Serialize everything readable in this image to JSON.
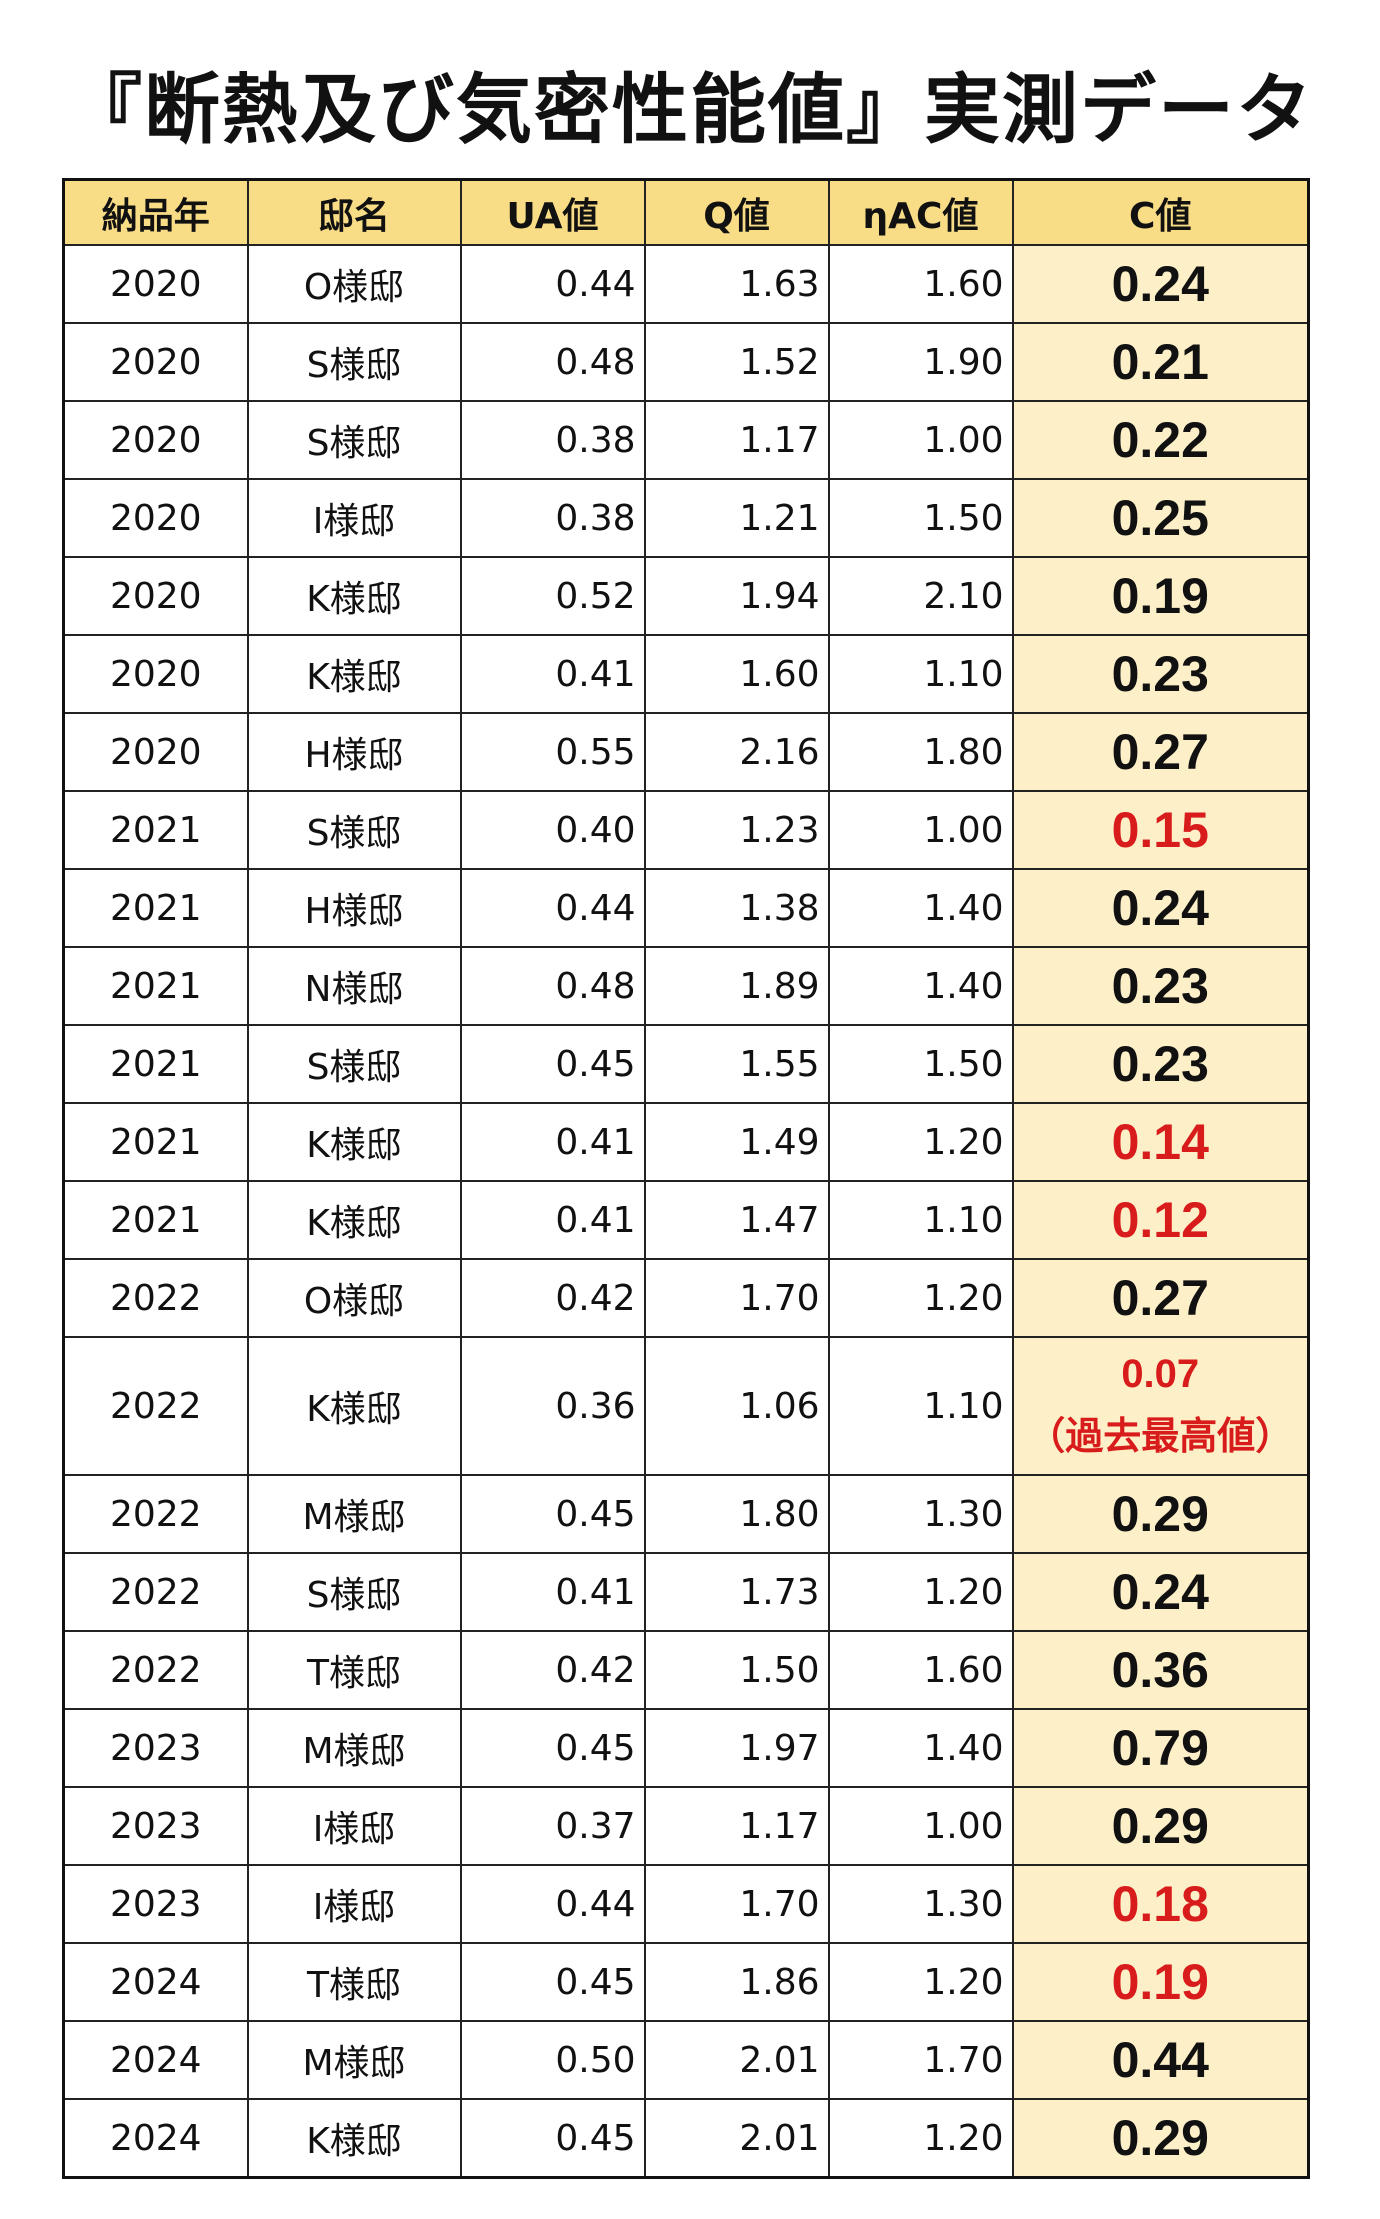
{
  "title": "『断熱及び気密性能値』実測データ",
  "columns": [
    "納品年",
    "邸名",
    "UA値",
    "Q値",
    "ηAC値",
    "C値"
  ],
  "colors": {
    "header_bg": "#f9dc86",
    "c_column_bg": "#fdf0c9",
    "highlight": "#d81c1c"
  },
  "rows": [
    {
      "year": "2020",
      "name": "O様邸",
      "ua": "0.44",
      "q": "1.63",
      "eta": "1.60",
      "c": "0.24",
      "red": false
    },
    {
      "year": "2020",
      "name": "S様邸",
      "ua": "0.48",
      "q": "1.52",
      "eta": "1.90",
      "c": "0.21",
      "red": false
    },
    {
      "year": "2020",
      "name": "S様邸",
      "ua": "0.38",
      "q": "1.17",
      "eta": "1.00",
      "c": "0.22",
      "red": false
    },
    {
      "year": "2020",
      "name": "I様邸",
      "ua": "0.38",
      "q": "1.21",
      "eta": "1.50",
      "c": "0.25",
      "red": false
    },
    {
      "year": "2020",
      "name": "K様邸",
      "ua": "0.52",
      "q": "1.94",
      "eta": "2.10",
      "c": "0.19",
      "red": false
    },
    {
      "year": "2020",
      "name": "K様邸",
      "ua": "0.41",
      "q": "1.60",
      "eta": "1.10",
      "c": "0.23",
      "red": false
    },
    {
      "year": "2020",
      "name": "H様邸",
      "ua": "0.55",
      "q": "2.16",
      "eta": "1.80",
      "c": "0.27",
      "red": false
    },
    {
      "year": "2021",
      "name": "S様邸",
      "ua": "0.40",
      "q": "1.23",
      "eta": "1.00",
      "c": "0.15",
      "red": true
    },
    {
      "year": "2021",
      "name": "H様邸",
      "ua": "0.44",
      "q": "1.38",
      "eta": "1.40",
      "c": "0.24",
      "red": false
    },
    {
      "year": "2021",
      "name": "N様邸",
      "ua": "0.48",
      "q": "1.89",
      "eta": "1.40",
      "c": "0.23",
      "red": false
    },
    {
      "year": "2021",
      "name": "S様邸",
      "ua": "0.45",
      "q": "1.55",
      "eta": "1.50",
      "c": "0.23",
      "red": false
    },
    {
      "year": "2021",
      "name": "K様邸",
      "ua": "0.41",
      "q": "1.49",
      "eta": "1.20",
      "c": "0.14",
      "red": true
    },
    {
      "year": "2021",
      "name": "K様邸",
      "ua": "0.41",
      "q": "1.47",
      "eta": "1.10",
      "c": "0.12",
      "red": true
    },
    {
      "year": "2022",
      "name": "O様邸",
      "ua": "0.42",
      "q": "1.70",
      "eta": "1.20",
      "c": "0.27",
      "red": false
    },
    {
      "year": "2022",
      "name": "K様邸",
      "ua": "0.36",
      "q": "1.06",
      "eta": "1.10",
      "c": "0.07",
      "red": true,
      "note": "（過去最高値）"
    },
    {
      "year": "2022",
      "name": "M様邸",
      "ua": "0.45",
      "q": "1.80",
      "eta": "1.30",
      "c": "0.29",
      "red": false
    },
    {
      "year": "2022",
      "name": "S様邸",
      "ua": "0.41",
      "q": "1.73",
      "eta": "1.20",
      "c": "0.24",
      "red": false
    },
    {
      "year": "2022",
      "name": "T様邸",
      "ua": "0.42",
      "q": "1.50",
      "eta": "1.60",
      "c": "0.36",
      "red": false
    },
    {
      "year": "2023",
      "name": "M様邸",
      "ua": "0.45",
      "q": "1.97",
      "eta": "1.40",
      "c": "0.79",
      "red": false
    },
    {
      "year": "2023",
      "name": "I様邸",
      "ua": "0.37",
      "q": "1.17",
      "eta": "1.00",
      "c": "0.29",
      "red": false
    },
    {
      "year": "2023",
      "name": "I様邸",
      "ua": "0.44",
      "q": "1.70",
      "eta": "1.30",
      "c": "0.18",
      "red": true
    },
    {
      "year": "2024",
      "name": "T様邸",
      "ua": "0.45",
      "q": "1.86",
      "eta": "1.20",
      "c": "0.19",
      "red": true
    },
    {
      "year": "2024",
      "name": "M様邸",
      "ua": "0.50",
      "q": "2.01",
      "eta": "1.70",
      "c": "0.44",
      "red": false
    },
    {
      "year": "2024",
      "name": "K様邸",
      "ua": "0.45",
      "q": "2.01",
      "eta": "1.20",
      "c": "0.29",
      "red": false
    }
  ]
}
